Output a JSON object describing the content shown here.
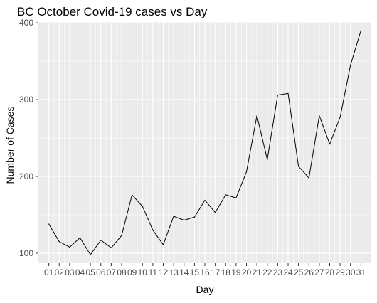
{
  "chart_data": {
    "type": "line",
    "title": "BC October Covid-19 cases vs Day",
    "xlabel": "Day",
    "ylabel": "Number of Cases",
    "categories": [
      "01",
      "02",
      "03",
      "04",
      "05",
      "06",
      "07",
      "08",
      "09",
      "10",
      "11",
      "12",
      "13",
      "14",
      "15",
      "16",
      "17",
      "18",
      "19",
      "20",
      "21",
      "22",
      "23",
      "24",
      "25",
      "26",
      "27",
      "28",
      "29",
      "30",
      "31"
    ],
    "series": [
      {
        "values": [
          138,
          115,
          108,
          120,
          98,
          117,
          107,
          123,
          176,
          161,
          130,
          111,
          148,
          143,
          147,
          169,
          153,
          176,
          172,
          206,
          279,
          222,
          306,
          308,
          213,
          198,
          279,
          242,
          277,
          345,
          390
        ]
      }
    ],
    "ylim": [
      87,
      401
    ],
    "yticks": [
      100,
      200,
      300,
      400
    ],
    "grid": true,
    "legend": "none",
    "colors": {
      "panel_background": "#ebebeb",
      "grid": "#ffffff",
      "line": "#000000",
      "tick_text": "#4d4d4d"
    }
  }
}
